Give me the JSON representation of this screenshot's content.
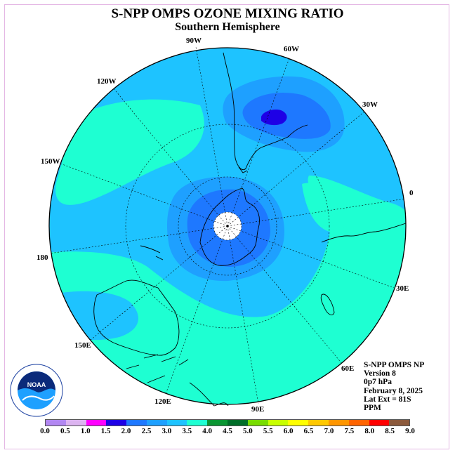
{
  "title": "S-NPP OMPS OZONE MIXING RATIO",
  "subtitle": "Southern Hemisphere",
  "longitude_labels": {
    "lon_90w": "90W",
    "lon_60w": "60W",
    "lon_30w": "30W",
    "lon_0": "0",
    "lon_30e": "30E",
    "lon_60e": "60E",
    "lon_90e": "90E",
    "lon_120e": "120E",
    "lon_150e": "150E",
    "lon_180": "180",
    "lon_150w": "150W",
    "lon_120w": "120W"
  },
  "info": {
    "instrument": "S-NPP OMPS NP",
    "version": "Version 8",
    "level": "0p7 hPa",
    "date": "February 8, 2025",
    "lat_ext": "Lat Ext = 81S",
    "units": "PPM"
  },
  "logo": {
    "text": "NOAA",
    "ring_text": "NATIONAL OCEANIC AND ATMOSPHERIC ADMINISTRATION · U.S. DEPARTMENT OF COMMERCE"
  },
  "colorbar": {
    "colors": [
      "#b287f2",
      "#dcb4f0",
      "#ff00ff",
      "#1e00e6",
      "#1e78ff",
      "#1ea0ff",
      "#1ec3ff",
      "#1effd2",
      "#0a9632",
      "#006e28",
      "#78dc00",
      "#c8ff00",
      "#ffff00",
      "#ffc800",
      "#ff9600",
      "#ff6400",
      "#ff0000",
      "#8c5a3c"
    ],
    "ticks": [
      "0.0",
      "0.5",
      "1.0",
      "1.5",
      "2.0",
      "2.5",
      "3.0",
      "3.5",
      "4.0",
      "4.5",
      "5.0",
      "5.5",
      "6.0",
      "6.5",
      "7.0",
      "7.5",
      "8.0",
      "8.5",
      "9.0"
    ]
  },
  "colors": {
    "band_3_0": "#1ec3ff",
    "band_3_5": "#1effd2",
    "band_2_5": "#1ea0ff",
    "band_2_0": "#1e78ff",
    "band_1_5": "#1e00e6",
    "frame": "#e4b8e4"
  }
}
